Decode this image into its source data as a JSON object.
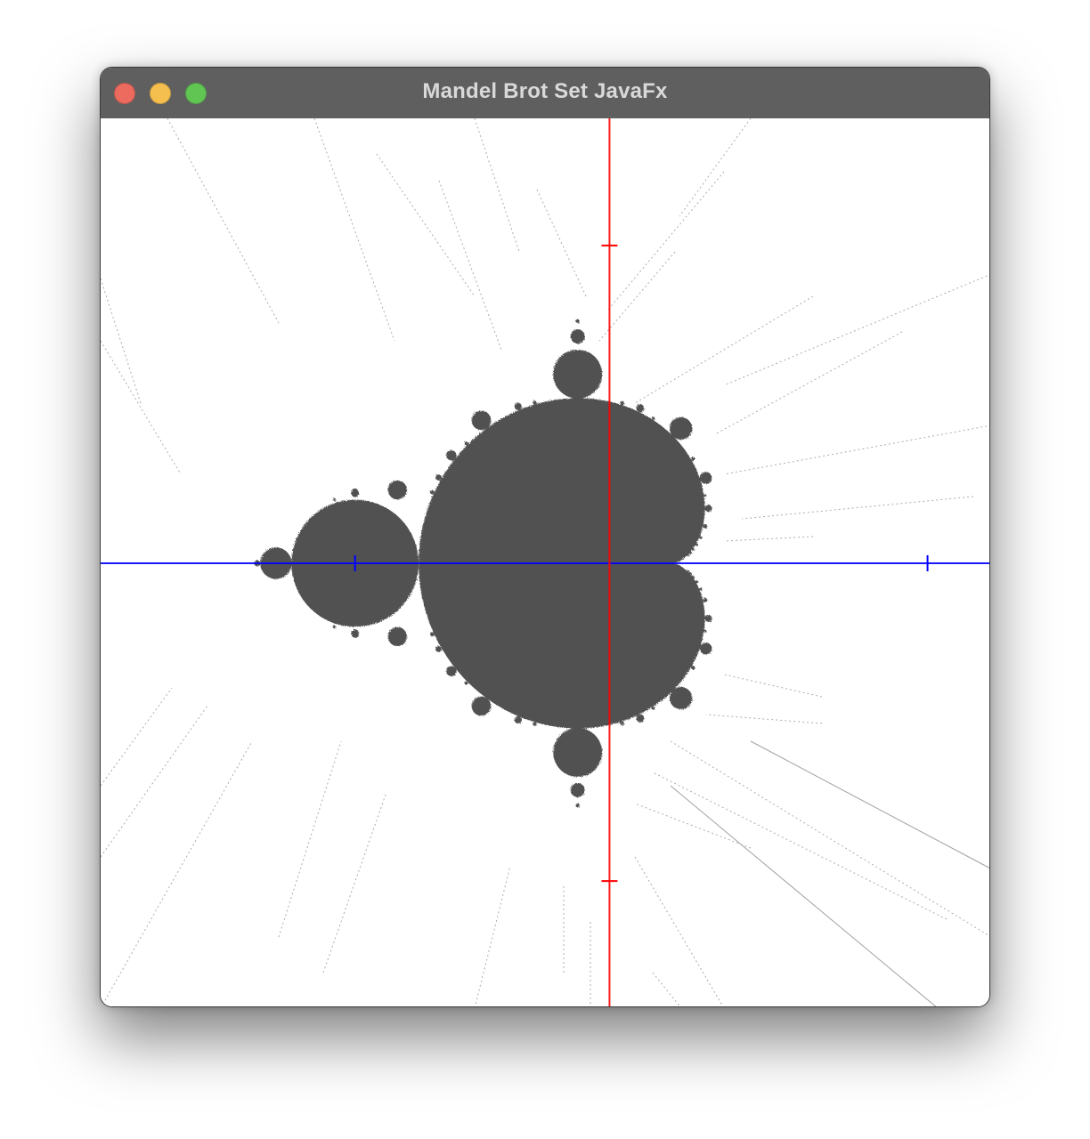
{
  "window": {
    "title": "Mandel Brot Set JavaFx",
    "controls": [
      {
        "name": "close",
        "icon": "close-icon",
        "color": "#ec6a5e"
      },
      {
        "name": "minimize",
        "icon": "minimize-icon",
        "color": "#f4bf4f"
      },
      {
        "name": "zoom",
        "icon": "zoom-icon",
        "color": "#61c554"
      }
    ]
  },
  "canvas": {
    "set_color": "#515151",
    "real_axis_color": "#0000ff",
    "imaginary_axis_color": "#ff0000",
    "background": "#ffffff",
    "view": {
      "real_min": -2.0,
      "real_max": 1.5,
      "imag_min": -1.75,
      "imag_max": 1.75
    },
    "real_axis_ticks": [
      -1,
      1.25
    ],
    "imaginary_axis_ticks": [
      1.25,
      -1.25
    ]
  }
}
